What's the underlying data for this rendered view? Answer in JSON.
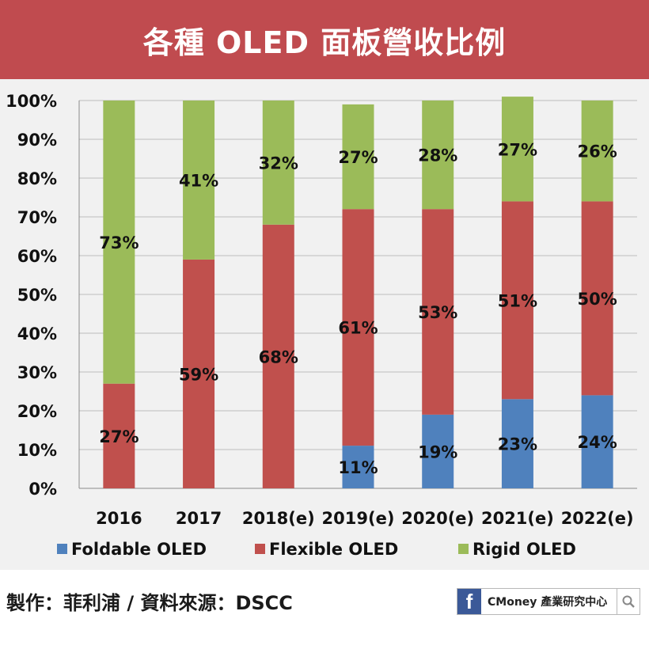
{
  "title": "各種 OLED 面板營收比例",
  "credit": "製作：菲利浦 / 資料來源：DSCC",
  "badge": {
    "brand_icon": "facebook-icon",
    "text": "CMoney 產業研究中心",
    "search_icon": "search-icon"
  },
  "colors": {
    "title_bg": "#c04b4f",
    "panel_bg": "#f1f1f1",
    "foldable": "#4f81bd",
    "flexible": "#c0504d",
    "rigid": "#9bbb59"
  },
  "chart_data": {
    "type": "bar",
    "stacked": true,
    "categories": [
      "2016",
      "2017",
      "2018(e)",
      "2019(e)",
      "2020(e)",
      "2021(e)",
      "2022(e)"
    ],
    "series": [
      {
        "name": "Foldable OLED",
        "color": "#4f81bd",
        "values": [
          0,
          0,
          0,
          11,
          19,
          23,
          24
        ],
        "labels": [
          "",
          "",
          "",
          "11%",
          "19%",
          "23%",
          "24%"
        ]
      },
      {
        "name": "Flexible OLED",
        "color": "#c0504d",
        "values": [
          27,
          59,
          68,
          61,
          53,
          51,
          50
        ],
        "labels": [
          "27%",
          "59%",
          "68%",
          "61%",
          "53%",
          "51%",
          "50%"
        ]
      },
      {
        "name": "Rigid OLED",
        "color": "#9bbb59",
        "values": [
          73,
          41,
          32,
          27,
          28,
          27,
          26
        ],
        "labels": [
          "73%",
          "41%",
          "32%",
          "27%",
          "28%",
          "27%",
          "26%"
        ]
      }
    ],
    "yticks": [
      "0%",
      "10%",
      "20%",
      "30%",
      "40%",
      "50%",
      "60%",
      "70%",
      "80%",
      "90%",
      "100%"
    ],
    "ylim": [
      0,
      100
    ],
    "grid": true,
    "legend_position": "bottom"
  }
}
